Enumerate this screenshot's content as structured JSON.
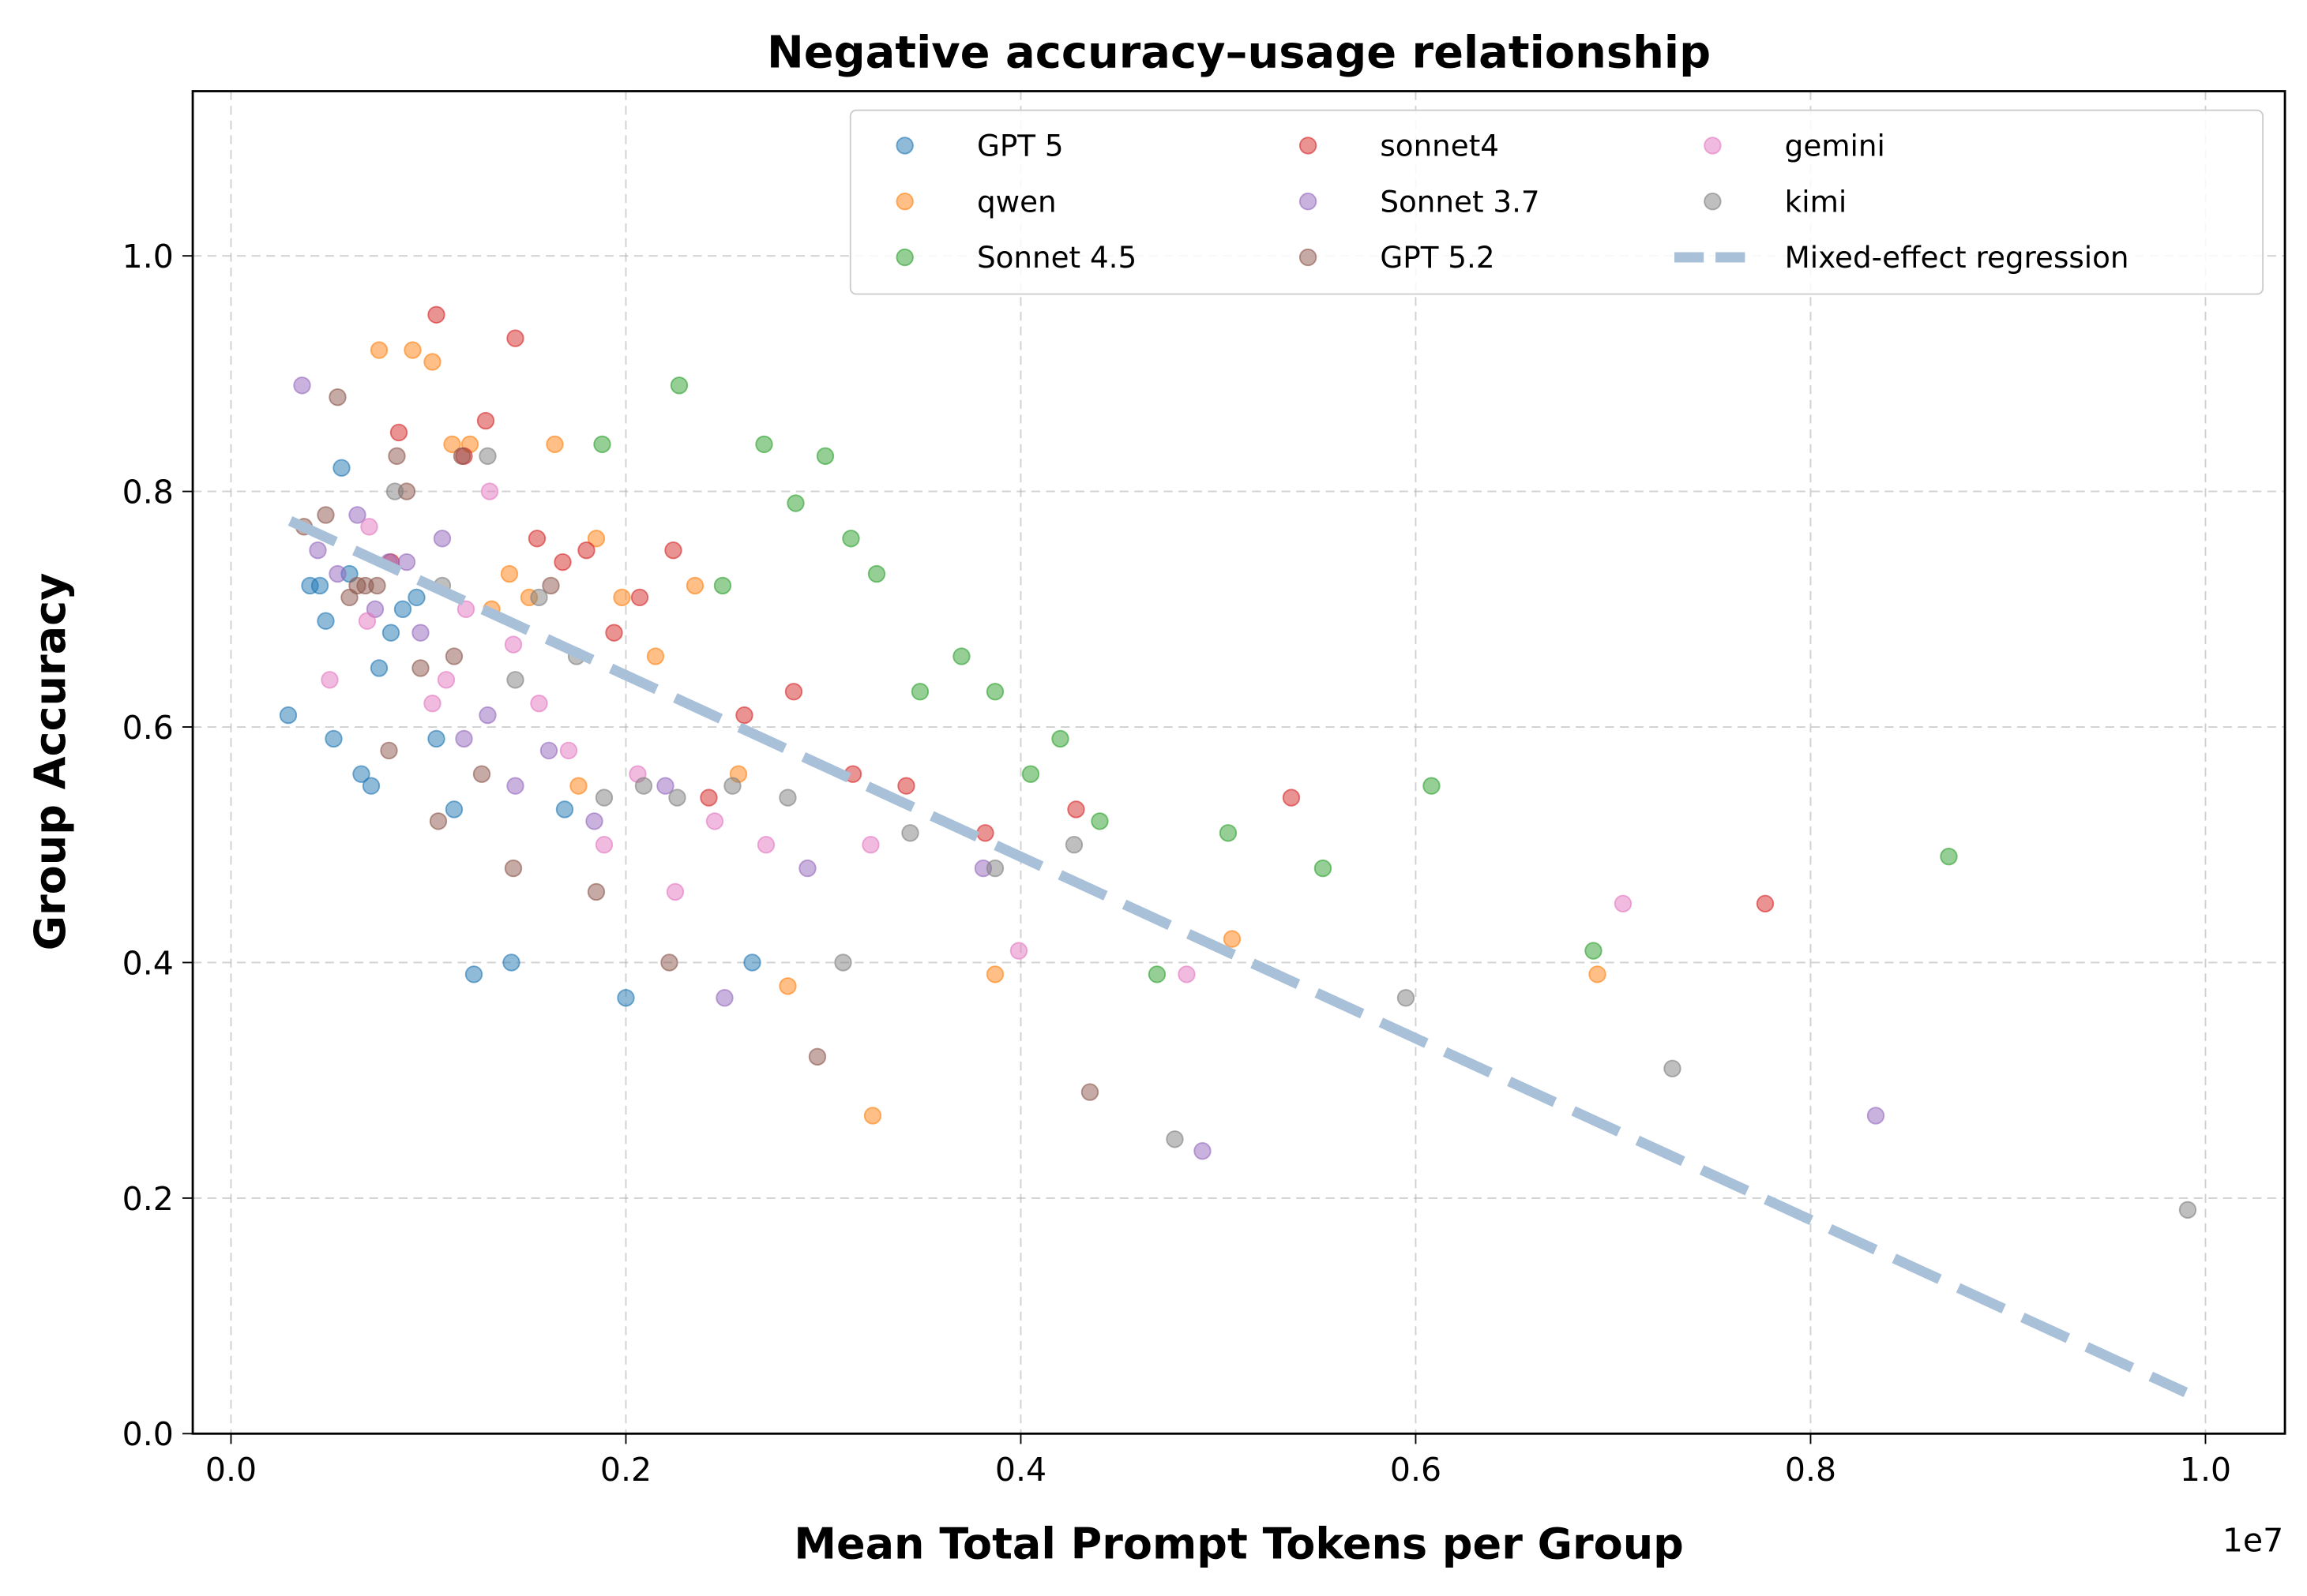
{
  "chart_data": {
    "type": "scatter",
    "title": "Negative accuracy–usage relationship",
    "xlabel": "Mean Total Prompt Tokens per Group",
    "ylabel": "Group Accuracy",
    "x_offset_label": "1e7",
    "xlim": [
      -0.019,
      1.04
    ],
    "ylim": [
      0,
      1.14
    ],
    "xticks": [
      "0.0",
      "0.2",
      "0.4",
      "0.6",
      "0.8",
      "1.0"
    ],
    "xtick_values": [
      0,
      0.2,
      0.4,
      0.6,
      0.8,
      1.0
    ],
    "yticks": [
      "0.0",
      "0.2",
      "0.4",
      "0.6",
      "0.8",
      "1.0"
    ],
    "ytick_values": [
      0,
      0.2,
      0.4,
      0.6,
      0.8,
      1.0
    ],
    "grid": true,
    "legend_placement": "top-right",
    "series": [
      {
        "name": "GPT 5",
        "color": "#1f77b4",
        "points": [
          [
            0.029,
            0.61
          ],
          [
            0.04,
            0.72
          ],
          [
            0.045,
            0.72
          ],
          [
            0.048,
            0.69
          ],
          [
            0.052,
            0.59
          ],
          [
            0.056,
            0.82
          ],
          [
            0.06,
            0.73
          ],
          [
            0.066,
            0.56
          ],
          [
            0.071,
            0.55
          ],
          [
            0.075,
            0.65
          ],
          [
            0.081,
            0.68
          ],
          [
            0.087,
            0.7
          ],
          [
            0.094,
            0.71
          ],
          [
            0.104,
            0.59
          ],
          [
            0.113,
            0.53
          ],
          [
            0.123,
            0.39
          ],
          [
            0.142,
            0.4
          ],
          [
            0.169,
            0.53
          ],
          [
            0.2,
            0.37
          ],
          [
            0.264,
            0.4
          ]
        ]
      },
      {
        "name": "qwen",
        "color": "#ff7f0e",
        "points": [
          [
            0.075,
            0.92
          ],
          [
            0.092,
            0.92
          ],
          [
            0.102,
            0.91
          ],
          [
            0.112,
            0.84
          ],
          [
            0.121,
            0.84
          ],
          [
            0.132,
            0.7
          ],
          [
            0.141,
            0.73
          ],
          [
            0.151,
            0.71
          ],
          [
            0.164,
            0.84
          ],
          [
            0.176,
            0.55
          ],
          [
            0.185,
            0.76
          ],
          [
            0.198,
            0.71
          ],
          [
            0.215,
            0.66
          ],
          [
            0.235,
            0.72
          ],
          [
            0.257,
            0.56
          ],
          [
            0.282,
            0.38
          ],
          [
            0.325,
            0.27
          ],
          [
            0.387,
            0.39
          ],
          [
            0.507,
            0.42
          ],
          [
            0.692,
            0.39
          ]
        ]
      },
      {
        "name": "Sonnet 4.5",
        "color": "#2ca02c",
        "points": [
          [
            0.188,
            0.84
          ],
          [
            0.227,
            0.89
          ],
          [
            0.249,
            0.72
          ],
          [
            0.27,
            0.84
          ],
          [
            0.286,
            0.79
          ],
          [
            0.301,
            0.83
          ],
          [
            0.314,
            0.76
          ],
          [
            0.327,
            0.73
          ],
          [
            0.349,
            0.63
          ],
          [
            0.37,
            0.66
          ],
          [
            0.387,
            0.63
          ],
          [
            0.405,
            0.56
          ],
          [
            0.42,
            0.59
          ],
          [
            0.44,
            0.52
          ],
          [
            0.469,
            0.39
          ],
          [
            0.505,
            0.51
          ],
          [
            0.553,
            0.48
          ],
          [
            0.608,
            0.55
          ],
          [
            0.69,
            0.41
          ],
          [
            0.87,
            0.49
          ]
        ]
      },
      {
        "name": "sonnet4",
        "color": "#d62728",
        "points": [
          [
            0.085,
            0.85
          ],
          [
            0.081,
            0.74
          ],
          [
            0.104,
            0.95
          ],
          [
            0.118,
            0.83
          ],
          [
            0.129,
            0.86
          ],
          [
            0.144,
            0.93
          ],
          [
            0.155,
            0.76
          ],
          [
            0.168,
            0.74
          ],
          [
            0.18,
            0.75
          ],
          [
            0.194,
            0.68
          ],
          [
            0.207,
            0.71
          ],
          [
            0.224,
            0.75
          ],
          [
            0.242,
            0.54
          ],
          [
            0.26,
            0.61
          ],
          [
            0.285,
            0.63
          ],
          [
            0.315,
            0.56
          ],
          [
            0.342,
            0.55
          ],
          [
            0.382,
            0.51
          ],
          [
            0.428,
            0.53
          ],
          [
            0.537,
            0.54
          ],
          [
            0.777,
            0.45
          ]
        ]
      },
      {
        "name": "Sonnet 3.7",
        "color": "#9467bd",
        "points": [
          [
            0.036,
            0.89
          ],
          [
            0.044,
            0.75
          ],
          [
            0.054,
            0.73
          ],
          [
            0.064,
            0.78
          ],
          [
            0.073,
            0.7
          ],
          [
            0.08,
            0.74
          ],
          [
            0.089,
            0.74
          ],
          [
            0.096,
            0.68
          ],
          [
            0.107,
            0.76
          ],
          [
            0.118,
            0.59
          ],
          [
            0.13,
            0.61
          ],
          [
            0.144,
            0.55
          ],
          [
            0.161,
            0.58
          ],
          [
            0.184,
            0.52
          ],
          [
            0.22,
            0.55
          ],
          [
            0.25,
            0.37
          ],
          [
            0.292,
            0.48
          ],
          [
            0.381,
            0.48
          ],
          [
            0.492,
            0.24
          ],
          [
            0.833,
            0.27
          ]
        ]
      },
      {
        "name": "GPT 5.2",
        "color": "#8c564b",
        "points": [
          [
            0.037,
            0.77
          ],
          [
            0.048,
            0.78
          ],
          [
            0.054,
            0.88
          ],
          [
            0.06,
            0.71
          ],
          [
            0.064,
            0.72
          ],
          [
            0.068,
            0.72
          ],
          [
            0.074,
            0.72
          ],
          [
            0.08,
            0.58
          ],
          [
            0.084,
            0.83
          ],
          [
            0.089,
            0.8
          ],
          [
            0.096,
            0.65
          ],
          [
            0.105,
            0.52
          ],
          [
            0.113,
            0.66
          ],
          [
            0.117,
            0.83
          ],
          [
            0.127,
            0.56
          ],
          [
            0.143,
            0.48
          ],
          [
            0.162,
            0.72
          ],
          [
            0.185,
            0.46
          ],
          [
            0.222,
            0.4
          ],
          [
            0.297,
            0.32
          ],
          [
            0.435,
            0.29
          ]
        ]
      },
      {
        "name": "gemini",
        "color": "#e377c2",
        "points": [
          [
            0.05,
            0.64
          ],
          [
            0.069,
            0.69
          ],
          [
            0.07,
            0.77
          ],
          [
            0.102,
            0.62
          ],
          [
            0.109,
            0.64
          ],
          [
            0.119,
            0.7
          ],
          [
            0.131,
            0.8
          ],
          [
            0.143,
            0.67
          ],
          [
            0.156,
            0.62
          ],
          [
            0.171,
            0.58
          ],
          [
            0.189,
            0.5
          ],
          [
            0.206,
            0.56
          ],
          [
            0.225,
            0.46
          ],
          [
            0.245,
            0.52
          ],
          [
            0.271,
            0.5
          ],
          [
            0.324,
            0.5
          ],
          [
            0.399,
            0.41
          ],
          [
            0.484,
            0.39
          ],
          [
            0.705,
            0.45
          ]
        ]
      },
      {
        "name": "kimi",
        "color": "#7f7f7f",
        "points": [
          [
            0.083,
            0.8
          ],
          [
            0.107,
            0.72
          ],
          [
            0.13,
            0.83
          ],
          [
            0.144,
            0.64
          ],
          [
            0.156,
            0.71
          ],
          [
            0.175,
            0.66
          ],
          [
            0.189,
            0.54
          ],
          [
            0.209,
            0.55
          ],
          [
            0.226,
            0.54
          ],
          [
            0.254,
            0.55
          ],
          [
            0.282,
            0.54
          ],
          [
            0.31,
            0.4
          ],
          [
            0.344,
            0.51
          ],
          [
            0.387,
            0.48
          ],
          [
            0.427,
            0.5
          ],
          [
            0.478,
            0.25
          ],
          [
            0.595,
            0.37
          ],
          [
            0.73,
            0.31
          ],
          [
            0.991,
            0.19
          ]
        ]
      }
    ],
    "regression": {
      "name": "Mixed-effect regression",
      "color": "#a9c0d9",
      "x": [
        0.03,
        0.99
      ],
      "y": [
        0.775,
        0.035
      ]
    }
  }
}
